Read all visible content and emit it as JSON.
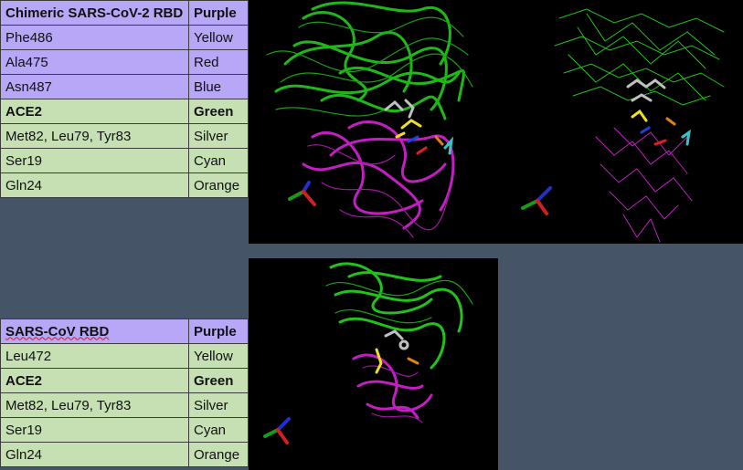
{
  "table_top": {
    "rows": [
      {
        "left": "Chimeric SARS-CoV-2 RBD",
        "right": "Purple"
      },
      {
        "left": "Phe486",
        "right": "Yellow"
      },
      {
        "left": "Ala475",
        "right": "Red"
      },
      {
        "left": "Asn487",
        "right": "Blue"
      },
      {
        "left": "ACE2",
        "right": "Green"
      },
      {
        "left": "Met82, Leu79, Tyr83",
        "right": "Silver"
      },
      {
        "left": "Ser19",
        "right": "Cyan"
      },
      {
        "left": "Gln24",
        "right": "Orange"
      }
    ]
  },
  "table_bottom": {
    "rows": [
      {
        "left": "SARS-CoV RBD",
        "right": "Purple"
      },
      {
        "left": "Leu472",
        "right": "Yellow"
      },
      {
        "left": "ACE2",
        "right": "Green"
      },
      {
        "left": "Met82, Leu79, Tyr83",
        "right": "Silver"
      },
      {
        "left": "Ser19",
        "right": "Cyan"
      },
      {
        "left": "Gln24",
        "right": "Orange"
      }
    ]
  },
  "colors": {
    "header_purple": "#b7a7f6",
    "row_green": "#c7e0b3",
    "background": "#465468",
    "protein_green": "#22c21a",
    "protein_magenta": "#c21ec2"
  },
  "panels": {
    "top": {
      "description_icon": "molecular-structure-image"
    },
    "bottom": {
      "description_icon": "molecular-structure-image"
    }
  }
}
